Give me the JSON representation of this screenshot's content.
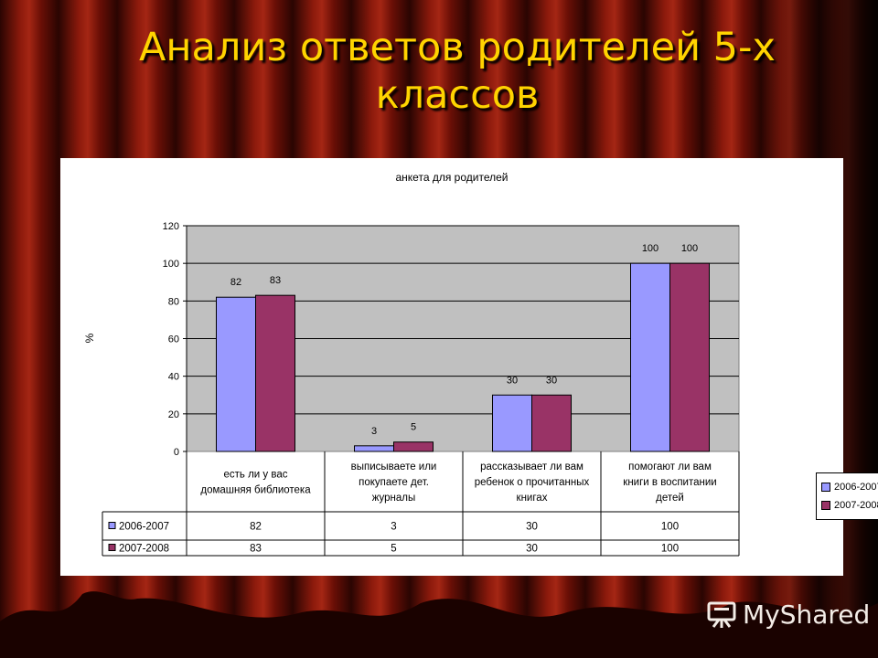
{
  "slide": {
    "title": "Анализ ответов родителей 5-х классов",
    "watermark": "MyShared"
  },
  "colors": {
    "title": "#ffd400",
    "series_2006": "#9999ff",
    "series_2007": "#993366",
    "plot_bg": "#c0c0c0",
    "curtain": "#7a1208"
  },
  "chart_data": {
    "type": "bar",
    "title": "анкета для родителей",
    "ylabel": "%",
    "xlabel": "",
    "ylim": [
      0,
      120
    ],
    "yticks": [
      0,
      20,
      40,
      60,
      80,
      100,
      120
    ],
    "grid": true,
    "legend_position": "right",
    "categories": [
      [
        "есть ли у вас",
        "домашняя библиотека"
      ],
      [
        "выписываете или",
        "покупаете дет.",
        "журналы"
      ],
      [
        "рассказывает ли вам",
        "ребенок о прочитанных",
        "книгах"
      ],
      [
        "помогают ли вам",
        "книги в воспитании",
        "детей"
      ]
    ],
    "series": [
      {
        "name": "2006-2007",
        "values": [
          82,
          3,
          30,
          100
        ]
      },
      {
        "name": "2007-2008",
        "values": [
          83,
          5,
          30,
          100
        ]
      }
    ],
    "data_table": true
  }
}
